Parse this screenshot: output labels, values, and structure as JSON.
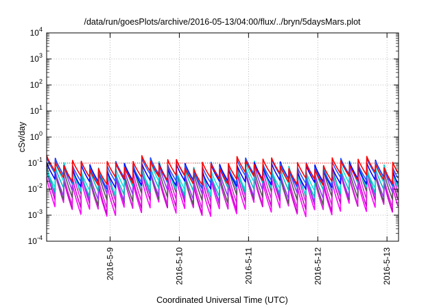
{
  "chart_data": {
    "type": "line",
    "title": "/data/run/goesPlots/archive/2016-05-13/04:00/flux/../bryn/5daysMars.plot",
    "xlabel": "Coordinated Universal Time (UTC)",
    "ylabel": "cSv/day",
    "yscale": "log",
    "ylim": [
      0.0001,
      10000
    ],
    "y_ticks": [
      {
        "base": "10",
        "exp": "-4"
      },
      {
        "base": "10",
        "exp": "-3"
      },
      {
        "base": "10",
        "exp": "-2"
      },
      {
        "base": "10",
        "exp": "-1"
      },
      {
        "base": "10",
        "exp": "0"
      },
      {
        "base": "10",
        "exp": "1"
      },
      {
        "base": "10",
        "exp": "2"
      },
      {
        "base": "10",
        "exp": "3"
      },
      {
        "base": "10",
        "exp": "4"
      }
    ],
    "x_range": [
      "2016-05-08 02:00",
      "2016-05-13 04:00"
    ],
    "x_ticks": [
      "2016-5-9",
      "2016-5-10",
      "2016-5-11",
      "2016-5-12",
      "2016-5-13"
    ],
    "grid": true,
    "threshold": {
      "value": 0.1,
      "color": "#ff0000",
      "style": "dotted"
    },
    "cycle_hours": 3,
    "series": [
      {
        "color": "#ff00ff",
        "peak": 0.022,
        "trough": 0.0016
      },
      {
        "color": "#cc00cc",
        "peak": 0.03,
        "trough": 0.0022
      },
      {
        "color": "#dd22dd",
        "peak": 0.04,
        "trough": 0.003
      },
      {
        "color": "#555555",
        "peak": 0.05,
        "trough": 0.0045
      },
      {
        "color": "#9933ff",
        "peak": 0.055,
        "trough": 0.006
      },
      {
        "color": "#00bbbb",
        "peak": 0.06,
        "trough": 0.009
      },
      {
        "color": "#11dddd",
        "peak": 0.065,
        "trough": 0.012
      },
      {
        "color": "#0000ff",
        "peak": 0.08,
        "trough": 0.018
      },
      {
        "color": "#2255ff",
        "peak": 0.09,
        "trough": 0.022
      },
      {
        "color": "#ff0000",
        "peak": 0.1,
        "trough": 0.025
      }
    ]
  }
}
